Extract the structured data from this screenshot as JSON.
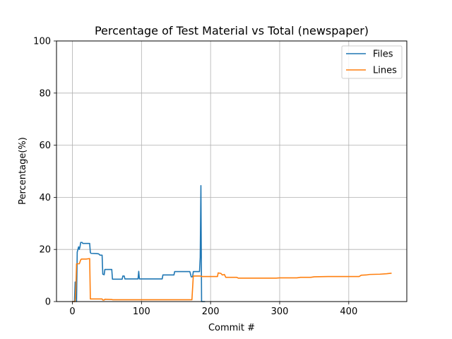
{
  "chart_data": {
    "type": "line",
    "title": "Percentage of Test Material vs Total (newspaper)",
    "xlabel": "Commit #",
    "ylabel": "Percentage(%)",
    "xlim": [
      -23,
      484
    ],
    "ylim": [
      0,
      100
    ],
    "xticks": [
      0,
      100,
      200,
      300,
      400
    ],
    "yticks": [
      0,
      20,
      40,
      60,
      80,
      100
    ],
    "grid": true,
    "legend_position": "top-right",
    "series": [
      {
        "name": "Files",
        "color": "#1f77b4",
        "points": [
          [
            0,
            0
          ],
          [
            3,
            0
          ],
          [
            4,
            7.5
          ],
          [
            5,
            7.5
          ],
          [
            6,
            0
          ],
          [
            7,
            19
          ],
          [
            8,
            20
          ],
          [
            9,
            21
          ],
          [
            10,
            20
          ],
          [
            11,
            21
          ],
          [
            12,
            22.7
          ],
          [
            14,
            22.7
          ],
          [
            15,
            22.3
          ],
          [
            25,
            22.3
          ],
          [
            26,
            18.8
          ],
          [
            27,
            18.5
          ],
          [
            35,
            18.4
          ],
          [
            38,
            18.3
          ],
          [
            40,
            17.8
          ],
          [
            43,
            17.8
          ],
          [
            44,
            10.5
          ],
          [
            46,
            10.3
          ],
          [
            47,
            12.3
          ],
          [
            57,
            12.3
          ],
          [
            58,
            8.6
          ],
          [
            72,
            8.6
          ],
          [
            73,
            9.8
          ],
          [
            75,
            9.8
          ],
          [
            76,
            8.7
          ],
          [
            95,
            8.7
          ],
          [
            96,
            11.6
          ],
          [
            97,
            8.7
          ],
          [
            130,
            8.7
          ],
          [
            131,
            10.2
          ],
          [
            147,
            10.2
          ],
          [
            148,
            11.5
          ],
          [
            170,
            11.5
          ],
          [
            172,
            9.5
          ],
          [
            174,
            9.5
          ],
          [
            175,
            11.5
          ],
          [
            184,
            11.5
          ],
          [
            185,
            17
          ],
          [
            186,
            44.5
          ],
          [
            187,
            0
          ],
          [
            192,
            0
          ]
        ]
      },
      {
        "name": "Lines",
        "color": "#ff7f0e",
        "points": [
          [
            0,
            0
          ],
          [
            4,
            0
          ],
          [
            5,
            5
          ],
          [
            6,
            14.5
          ],
          [
            10,
            14.5
          ],
          [
            12,
            16
          ],
          [
            13,
            16.3
          ],
          [
            20,
            16.3
          ],
          [
            25,
            16.5
          ],
          [
            26,
            1
          ],
          [
            43,
            1
          ],
          [
            44,
            0.6
          ],
          [
            46,
            0.6
          ],
          [
            47,
            0.9
          ],
          [
            57,
            0.8
          ],
          [
            58,
            0.7
          ],
          [
            173,
            0.7
          ],
          [
            175,
            9.8
          ],
          [
            185,
            9.8
          ],
          [
            188,
            9.6
          ],
          [
            210,
            9.6
          ],
          [
            211,
            11
          ],
          [
            215,
            10.8
          ],
          [
            217,
            10.2
          ],
          [
            220,
            10.4
          ],
          [
            222,
            9.3
          ],
          [
            238,
            9.3
          ],
          [
            240,
            9.0
          ],
          [
            295,
            9.0
          ],
          [
            300,
            9.1
          ],
          [
            325,
            9.1
          ],
          [
            330,
            9.3
          ],
          [
            345,
            9.3
          ],
          [
            350,
            9.5
          ],
          [
            370,
            9.6
          ],
          [
            415,
            9.6
          ],
          [
            418,
            10.1
          ],
          [
            425,
            10.2
          ],
          [
            430,
            10.4
          ],
          [
            445,
            10.5
          ],
          [
            455,
            10.7
          ],
          [
            462,
            10.9
          ]
        ]
      }
    ]
  }
}
